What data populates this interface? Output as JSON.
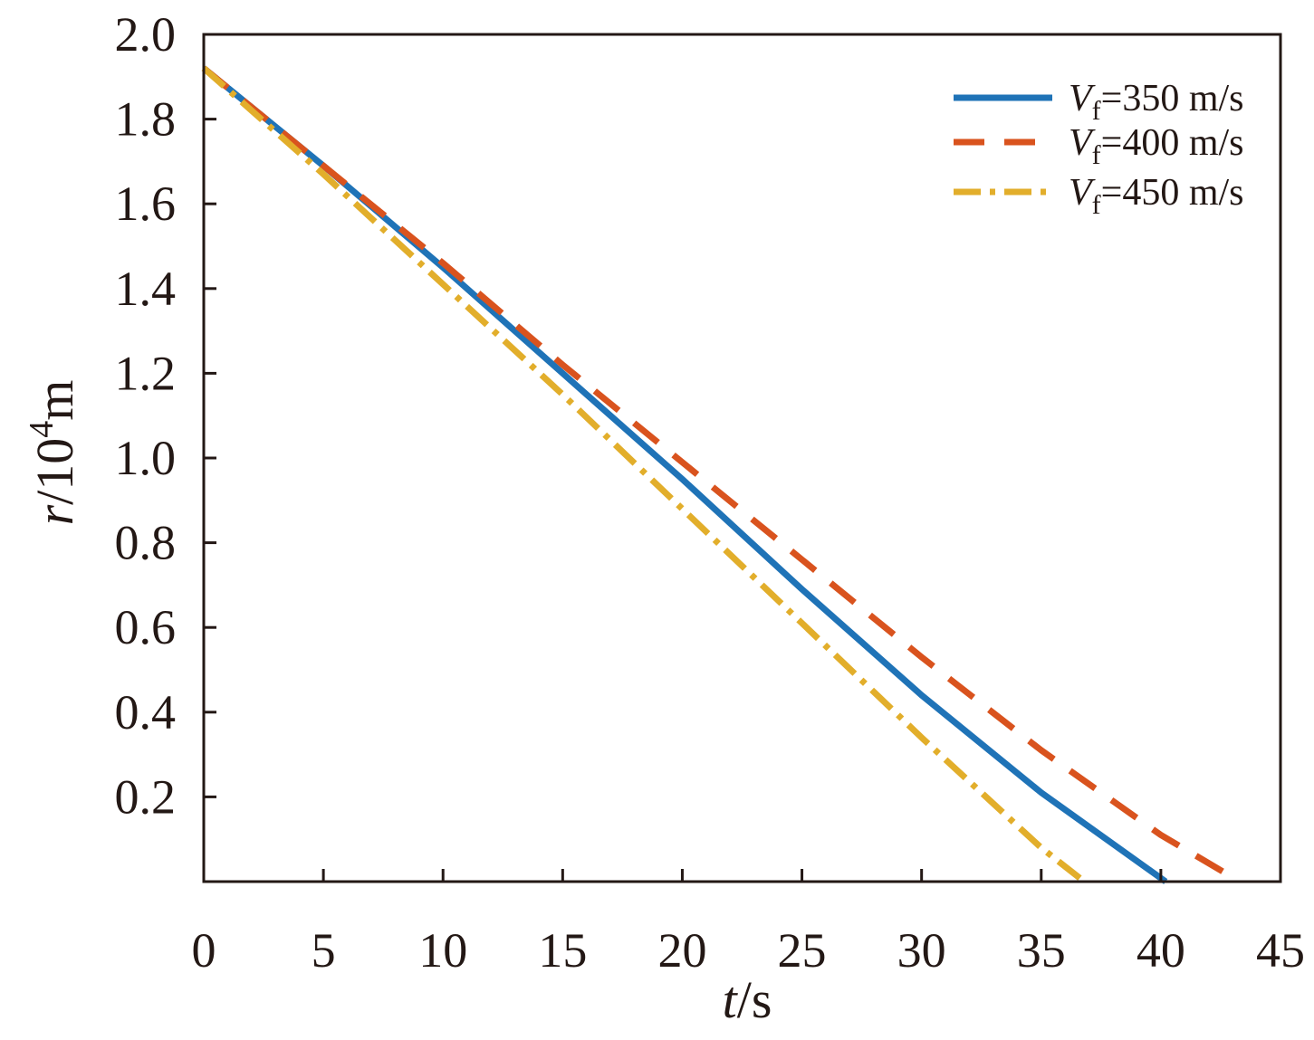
{
  "chart_data": {
    "type": "line",
    "title": "",
    "xlabel": {
      "var": "t",
      "unit": "/s"
    },
    "ylabel": {
      "var": "r",
      "unit_prefix": "/10",
      "unit_exp": "4",
      "unit_suffix": "m"
    },
    "xlim": [
      0,
      45
    ],
    "ylim": [
      0,
      2.0
    ],
    "x_ticks": [
      "0",
      "5",
      "10",
      "15",
      "20",
      "25",
      "30",
      "35",
      "40",
      "45"
    ],
    "y_ticks": [
      "0.2",
      "0.4",
      "0.6",
      "0.8",
      "1.0",
      "1.2",
      "1.4",
      "1.6",
      "1.8",
      "2.0"
    ],
    "grid": false,
    "legend_position": "top-right",
    "series": [
      {
        "name": {
          "symbol": "V",
          "subscript": "f",
          "text": "=350 m/s"
        },
        "color": "#1f73b7",
        "style": "solid",
        "x": [
          0,
          5,
          10,
          15,
          20,
          25,
          30,
          35,
          40.2
        ],
        "y": [
          1.92,
          1.69,
          1.45,
          1.2,
          0.95,
          0.69,
          0.44,
          0.21,
          0.0
        ]
      },
      {
        "name": {
          "symbol": "V",
          "subscript": "f",
          "text": "=400 m/s"
        },
        "color": "#d9531e",
        "style": "dashed",
        "x": [
          0,
          5,
          10,
          15,
          20,
          25,
          30,
          35,
          40,
          43
        ],
        "y": [
          1.92,
          1.69,
          1.46,
          1.22,
          0.99,
          0.76,
          0.53,
          0.31,
          0.11,
          0.01
        ]
      },
      {
        "name": {
          "symbol": "V",
          "subscript": "f",
          "text": "=450 m/s"
        },
        "color": "#e2ae2b",
        "style": "dashdot",
        "x": [
          0,
          5,
          10,
          15,
          20,
          25,
          30,
          35,
          36.8
        ],
        "y": [
          1.92,
          1.67,
          1.41,
          1.15,
          0.88,
          0.61,
          0.34,
          0.08,
          0.0
        ]
      }
    ]
  }
}
